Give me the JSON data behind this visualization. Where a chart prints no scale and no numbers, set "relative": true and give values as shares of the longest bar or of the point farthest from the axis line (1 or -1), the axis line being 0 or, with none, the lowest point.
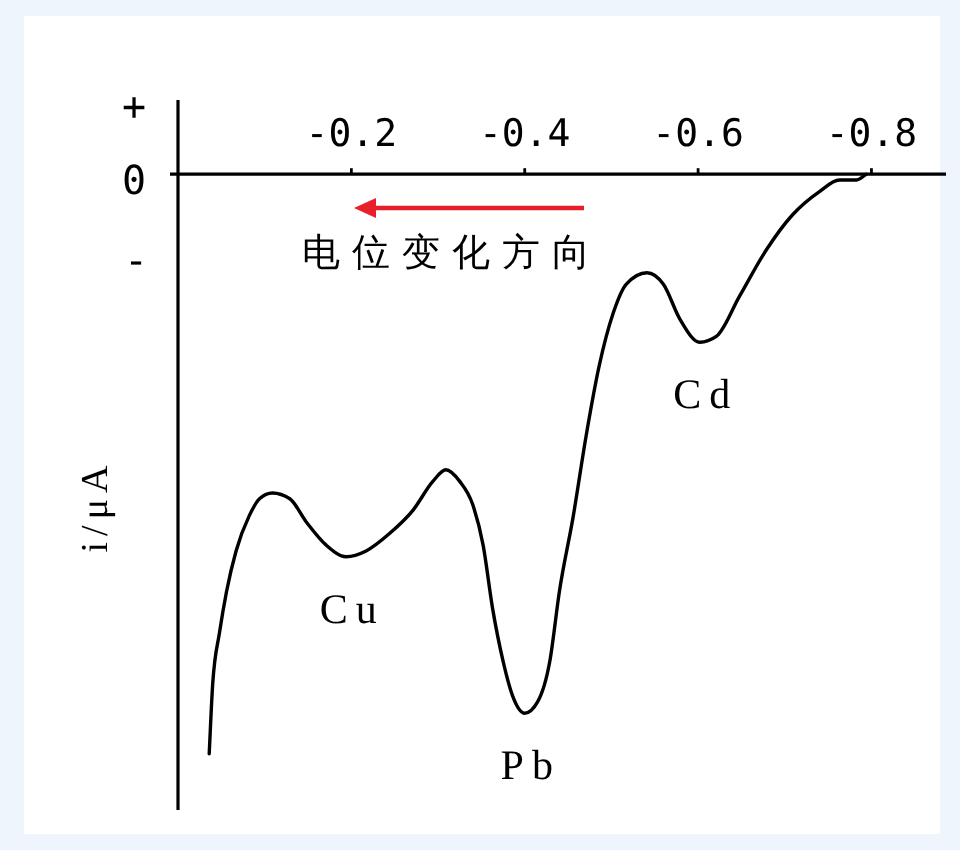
{
  "chart_data": {
    "type": "line",
    "ylabel": "i/μA",
    "relative": true,
    "color": "#000000",
    "x": [
      -0.036,
      -0.04,
      -0.048,
      -0.056,
      -0.067,
      -0.082,
      -0.094,
      -0.109,
      -0.129,
      -0.148,
      -0.171,
      -0.194,
      -0.217,
      -0.244,
      -0.271,
      -0.294,
      -0.309,
      -0.325,
      -0.34,
      -0.352,
      -0.363,
      -0.375,
      -0.386,
      -0.4,
      -0.415,
      -0.429,
      -0.44,
      -0.456,
      -0.471,
      -0.486,
      -0.502,
      -0.517,
      -0.541,
      -0.56,
      -0.579,
      -0.602,
      -0.621,
      -0.648,
      -0.679,
      -0.709,
      -0.74,
      -0.763,
      -0.783,
      -0.794
    ],
    "values": [
      -1.0,
      -0.88,
      -0.79,
      -0.72,
      -0.65,
      -0.59,
      -0.56,
      -0.55,
      -0.56,
      -0.6,
      -0.64,
      -0.66,
      -0.65,
      -0.62,
      -0.58,
      -0.53,
      -0.51,
      -0.53,
      -0.57,
      -0.64,
      -0.75,
      -0.84,
      -0.9,
      -0.93,
      -0.91,
      -0.84,
      -0.72,
      -0.59,
      -0.45,
      -0.33,
      -0.24,
      -0.19,
      -0.17,
      -0.19,
      -0.25,
      -0.29,
      -0.28,
      -0.21,
      -0.13,
      -0.07,
      -0.03,
      -0.01,
      -0.01,
      0.0
    ],
    "xlim": [
      0,
      -0.886
    ],
    "xticks": [
      -0.2,
      -0.4,
      -0.6,
      -0.8
    ],
    "annotations": [
      "+",
      "0",
      "-",
      "电位变化方向",
      {
        "text": "Cu",
        "x": -0.194,
        "y": -0.66
      },
      {
        "text": "Pb",
        "x": -0.4,
        "y": -0.93
      },
      {
        "text": "Cd",
        "x": -0.602,
        "y": -0.29
      }
    ]
  }
}
